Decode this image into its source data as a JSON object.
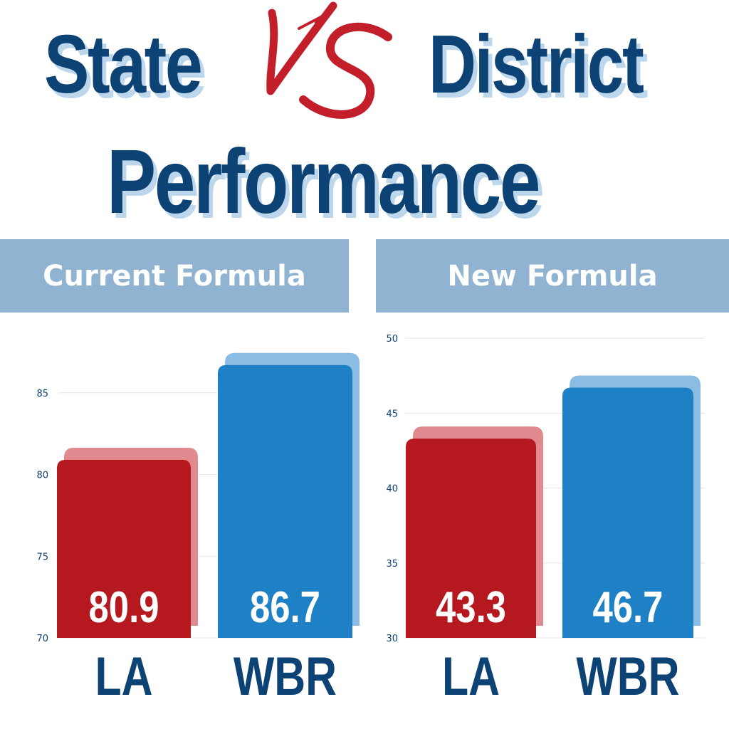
{
  "headline": {
    "left_word": "State",
    "vs": "VS",
    "right_word": "District",
    "second_line": "Performance"
  },
  "colors": {
    "navy": "#0d4274",
    "shadow_blue": "#bcd6ec",
    "panel_blue": "#8fb3d1",
    "vs_red": "#c31f2b",
    "la_red": "#b5191f",
    "la_shadow": "#e08a8f",
    "wbr_blue": "#1e81c5",
    "wbr_shadow": "#8bbde4"
  },
  "chart_data": [
    {
      "type": "bar",
      "title": "Current Formula",
      "categories": [
        "LA",
        "WBR"
      ],
      "values": [
        80.9,
        86.7
      ],
      "value_labels": [
        "80.9",
        "86.7"
      ],
      "bar_colors": [
        "#b5191f",
        "#1e81c5"
      ],
      "shadow_colors": [
        "#e08a8f",
        "#8bbde4"
      ],
      "yticks": [
        "70",
        "75",
        "80",
        "85"
      ],
      "ylim": [
        70,
        89
      ],
      "grid": true,
      "legend": "none"
    },
    {
      "type": "bar",
      "title": "New Formula",
      "categories": [
        "LA",
        "WBR"
      ],
      "values": [
        43.3,
        46.7
      ],
      "value_labels": [
        "43.3",
        "46.7"
      ],
      "bar_colors": [
        "#b5191f",
        "#1e81c5"
      ],
      "shadow_colors": [
        "#e08a8f",
        "#8bbde4"
      ],
      "yticks": [
        "30",
        "35",
        "40",
        "45",
        "50"
      ],
      "ylim": [
        30,
        51
      ],
      "grid": true,
      "legend": "none"
    }
  ]
}
